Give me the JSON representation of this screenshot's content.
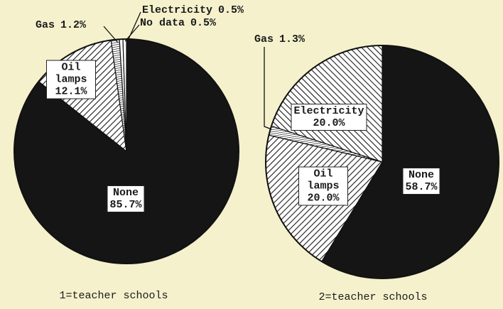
{
  "chart_data": [
    {
      "type": "pie",
      "title": "1=teacher schools",
      "categories": [
        "None",
        "Oil lamps",
        "Gas",
        "Electricity",
        "No data"
      ],
      "values": [
        85.7,
        12.1,
        1.2,
        0.5,
        0.5
      ],
      "value_labels": [
        "85.7%",
        "12.1%",
        "1.2%",
        "0.5%",
        "0.5%"
      ],
      "colors": [
        "#151515",
        "#2a2a2a",
        "#2a2a2a",
        "#ffffff",
        "#ffffff"
      ],
      "patterns": [
        "solid",
        "hatch-right",
        "hatch-dense",
        "solid",
        "solid"
      ]
    },
    {
      "type": "pie",
      "title": "2=teacher schools",
      "categories": [
        "None",
        "Oil lamps",
        "Gas",
        "Electricity"
      ],
      "values": [
        58.7,
        20.0,
        1.3,
        20.0
      ],
      "value_labels": [
        "58.7%",
        "20.0%",
        "1.3%",
        "20.0%"
      ],
      "colors": [
        "#151515",
        "#2a2a2a",
        "#2a2a2a",
        "#2a2a2a"
      ],
      "patterns": [
        "solid",
        "hatch-right",
        "hatch-dense",
        "hatch-left"
      ]
    }
  ]
}
